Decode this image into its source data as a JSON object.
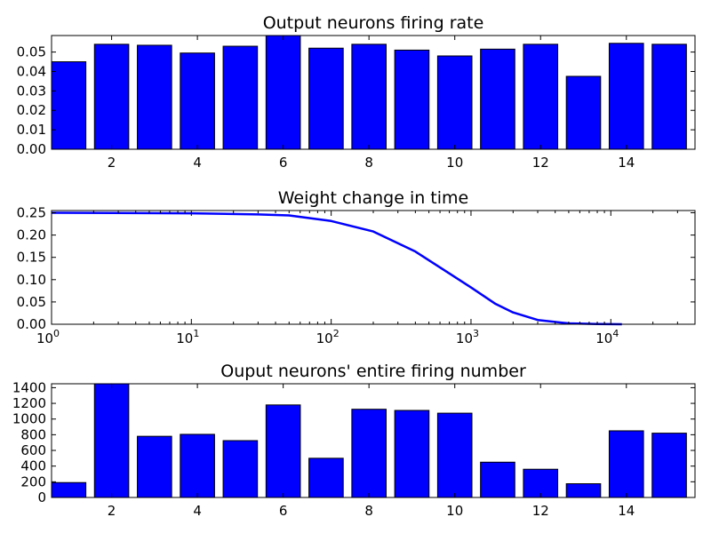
{
  "chart_data": [
    {
      "type": "bar",
      "title": "Output neurons firing rate",
      "xlabel": "",
      "ylabel": "",
      "categories": [
        1,
        2,
        3,
        4,
        5,
        6,
        7,
        8,
        9,
        10,
        11,
        12,
        13,
        14,
        15
      ],
      "values": [
        0.045,
        0.054,
        0.0535,
        0.0495,
        0.053,
        0.0585,
        0.052,
        0.054,
        0.051,
        0.048,
        0.0515,
        0.054,
        0.0375,
        0.0545,
        0.054
      ],
      "ylim": [
        0,
        0.0585
      ],
      "xlim": [
        0.6,
        15.6
      ],
      "yticks": [
        "0.00",
        "0.01",
        "0.02",
        "0.03",
        "0.04",
        "0.05"
      ],
      "xticks": [
        "2",
        "4",
        "6",
        "8",
        "10",
        "12",
        "14"
      ],
      "bar_color": "#0000ff",
      "grid": false
    },
    {
      "type": "line",
      "title": "Weight change in time",
      "xlabel": "",
      "ylabel": "",
      "x_scale": "log",
      "x": [
        1,
        10,
        30,
        50,
        100,
        200,
        400,
        700,
        1000,
        1500,
        2000,
        3000,
        5000,
        8000,
        12000
      ],
      "y": [
        0.25,
        0.2488,
        0.2462,
        0.244,
        0.2315,
        0.208,
        0.163,
        0.114,
        0.0825,
        0.0455,
        0.0265,
        0.0095,
        0.002,
        0.0005,
        0.0001
      ],
      "xlim": [
        1,
        40000
      ],
      "ylim": [
        0,
        0.255
      ],
      "yticks": [
        "0.00",
        "0.05",
        "0.10",
        "0.15",
        "0.20",
        "0.25"
      ],
      "xticks": [
        {
          "base": "10",
          "exp": "0"
        },
        {
          "base": "10",
          "exp": "1"
        },
        {
          "base": "10",
          "exp": "2"
        },
        {
          "base": "10",
          "exp": "3"
        },
        {
          "base": "10",
          "exp": "4"
        }
      ],
      "line_color": "#0000ff",
      "grid": false
    },
    {
      "type": "bar",
      "title": "Ouput neurons' entire firing number",
      "xlabel": "",
      "ylabel": "",
      "categories": [
        1,
        2,
        3,
        4,
        5,
        6,
        7,
        8,
        9,
        10,
        11,
        12,
        13,
        14,
        15
      ],
      "values": [
        190,
        1450,
        780,
        805,
        725,
        1180,
        500,
        1125,
        1110,
        1075,
        450,
        360,
        175,
        850,
        820
      ],
      "ylim": [
        0,
        1450
      ],
      "xlim": [
        0.6,
        15.6
      ],
      "yticks": [
        "0",
        "200",
        "400",
        "600",
        "800",
        "1000",
        "1200",
        "1400"
      ],
      "xticks": [
        "2",
        "4",
        "6",
        "8",
        "10",
        "12",
        "14"
      ],
      "bar_color": "#0000ff",
      "grid": false
    }
  ]
}
